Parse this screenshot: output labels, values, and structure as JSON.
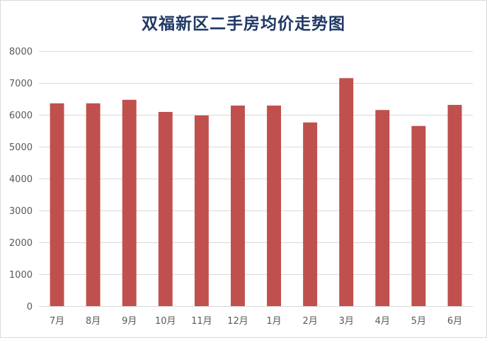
{
  "chart_data": {
    "type": "bar",
    "title": "双福新区二手房均价走势图",
    "xlabel": "",
    "ylabel": "",
    "categories": [
      "7月",
      "8月",
      "9月",
      "10月",
      "11月",
      "12月",
      "1月",
      "2月",
      "3月",
      "4月",
      "5月",
      "6月"
    ],
    "values": [
      6360,
      6360,
      6470,
      6090,
      5980,
      6290,
      6290,
      5760,
      7150,
      6150,
      5650,
      6310
    ],
    "ylim": [
      0,
      8000
    ],
    "yticks": [
      0,
      1000,
      2000,
      3000,
      4000,
      5000,
      6000,
      7000,
      8000
    ],
    "grid": true,
    "legend": "none",
    "colors": {
      "bar": "#c0504d",
      "grid": "#d9d9d9",
      "title": "#1f3864",
      "tick_label": "#595959"
    }
  }
}
